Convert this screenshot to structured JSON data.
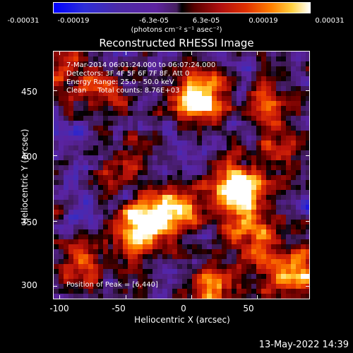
{
  "colorbar": {
    "tick_labels": [
      "-0.00031",
      "-0.00019",
      "-6.3e-05",
      "6.3e-05",
      "0.00019",
      "0.00031"
    ],
    "units": "(photons cm⁻² s⁻¹ asec⁻²)",
    "colors": [
      "#0000ff",
      "#4b2aa8",
      "#000000",
      "#b01010",
      "#ff8000",
      "#ffffff"
    ]
  },
  "title": "Reconstructed RHESSI Image",
  "annotations": {
    "time_range": "7-Mar-2014 06:01:24.000 to 06:07:24.000",
    "detectors": "Detectors: 3F 4F 5F 6F 7F 8F, Att 0",
    "energy": "Energy Range: 25.0 - 50.0 keV",
    "clean": "Clean     Total counts: 8.76E+03",
    "peak": "Position of Peak = [6,440]"
  },
  "footer": {
    "date": "13-May-2022 14:39"
  },
  "chart_data": {
    "type": "heatmap",
    "title": "Reconstructed RHESSI Image",
    "xlabel": "Heliocentric X (arcsec)",
    "ylabel": "Heliocentric Y (arcsec)",
    "xlim": [
      -105,
      90
    ],
    "ylim": [
      290,
      480
    ],
    "x_ticks": [
      "-100",
      "-50",
      "0",
      "50"
    ],
    "y_ticks": [
      "300",
      "350",
      "400",
      "450"
    ],
    "x_tick_values": [
      -100,
      -50,
      0,
      50
    ],
    "y_tick_values": [
      300,
      350,
      400,
      450
    ],
    "colorbar_range": [
      -0.00031,
      0.00031
    ],
    "peak": [
      6,
      440
    ],
    "sources": [
      {
        "x": 35,
        "y": 375,
        "strength": 1.0
      },
      {
        "x": 5,
        "y": 445,
        "strength": 0.95
      },
      {
        "x": -40,
        "y": 345,
        "strength": 0.9
      },
      {
        "x": -15,
        "y": 360,
        "strength": 0.7
      },
      {
        "x": 75,
        "y": 310,
        "strength": 0.75
      },
      {
        "x": -85,
        "y": 320,
        "strength": 0.5
      },
      {
        "x": 60,
        "y": 440,
        "strength": 0.45
      },
      {
        "x": -70,
        "y": 450,
        "strength": 0.4
      },
      {
        "x": 15,
        "y": 300,
        "strength": 0.5
      },
      {
        "x": -55,
        "y": 395,
        "strength": 0.35
      },
      {
        "x": 45,
        "y": 340,
        "strength": 0.55
      },
      {
        "x": -100,
        "y": 465,
        "strength": 0.5
      },
      {
        "x": 70,
        "y": 405,
        "strength": 0.35
      }
    ]
  }
}
